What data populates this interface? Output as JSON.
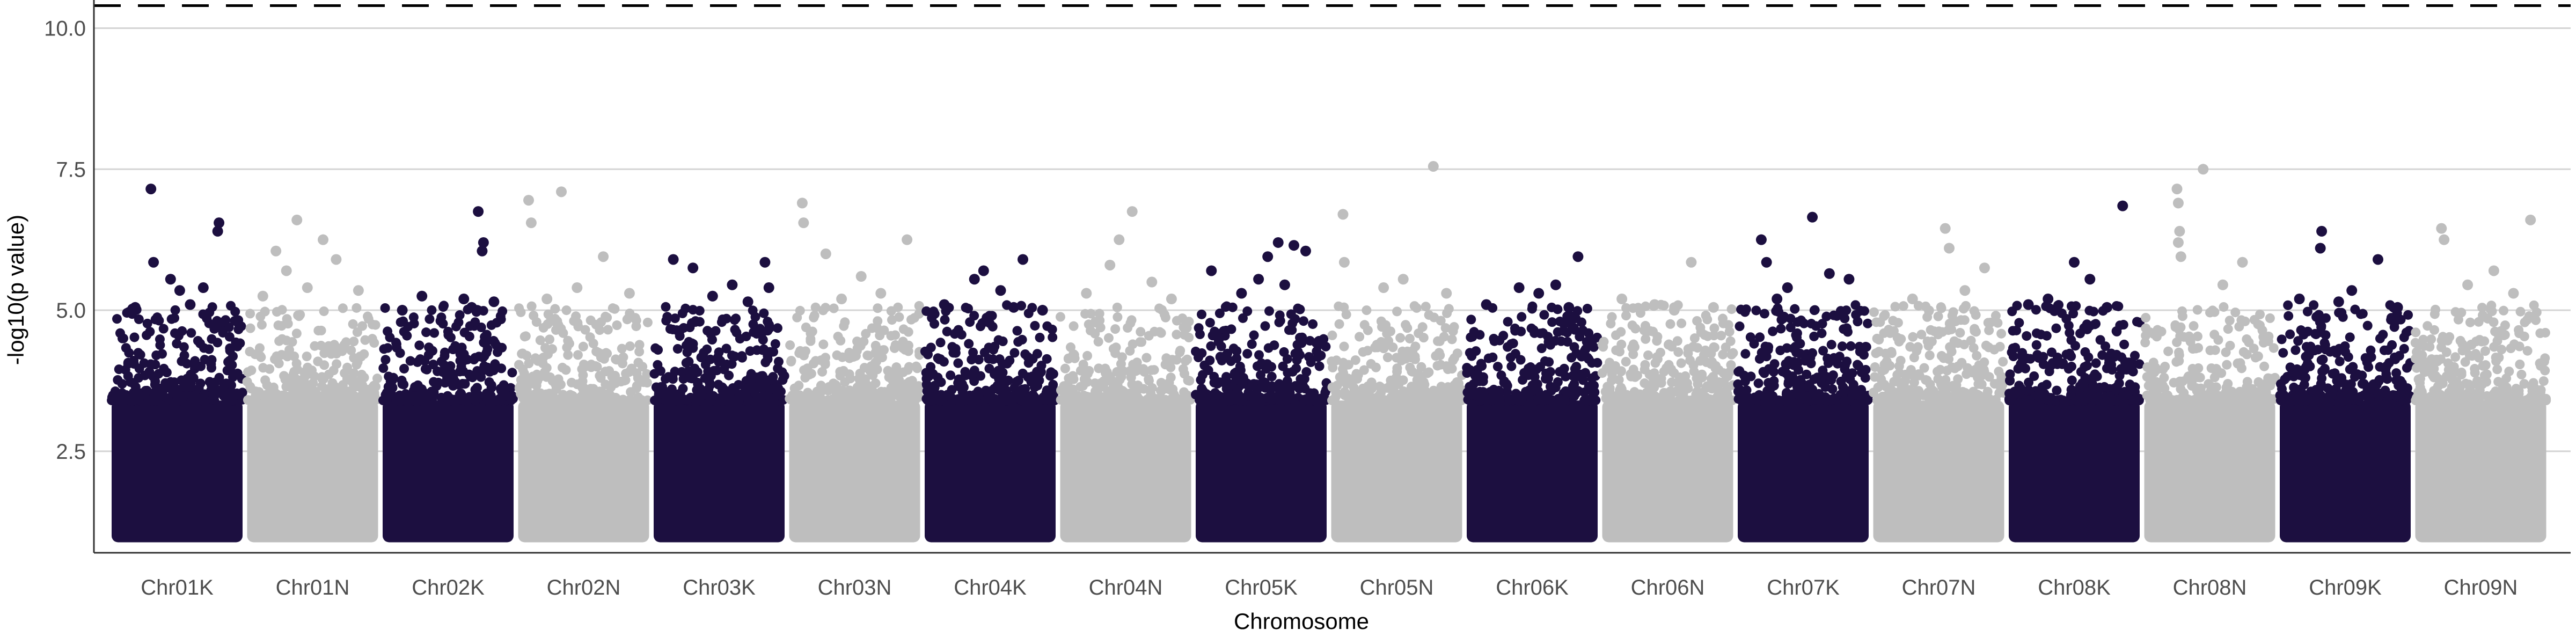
{
  "chart_data": {
    "type": "scatter",
    "title": "",
    "xlabel": "Chromosome",
    "ylabel": "-log10(p value)",
    "ylim": [
      0.7,
      10.5
    ],
    "yticks": [
      2.5,
      5.0,
      7.5,
      10.0
    ],
    "ytick_labels": [
      "2.5",
      "5.0",
      "7.5",
      "10.0"
    ],
    "grid": "horizontal major lines only",
    "threshold_line": {
      "value": 10.4,
      "style": "dashed",
      "color": "#000000"
    },
    "floor_value": 1.0,
    "colors": {
      "dark": "#1c0f40",
      "light": "#bebebe"
    },
    "categories": [
      "Chr01K",
      "Chr01N",
      "Chr02K",
      "Chr02N",
      "Chr03K",
      "Chr03N",
      "Chr04K",
      "Chr04N",
      "Chr05K",
      "Chr05N",
      "Chr06K",
      "Chr06N",
      "Chr07K",
      "Chr07N",
      "Chr08K",
      "Chr08N",
      "Chr09K",
      "Chr09N"
    ],
    "series": [
      {
        "category": "Chr01K",
        "color": "dark",
        "max": 7.15,
        "peaks": [
          [
            0.3,
            7.15
          ],
          [
            0.82,
            6.55
          ],
          [
            0.81,
            6.4
          ],
          [
            0.32,
            5.85
          ],
          [
            0.45,
            5.55
          ],
          [
            0.52,
            5.35
          ],
          [
            0.18,
            5.05
          ],
          [
            0.7,
            5.4
          ],
          [
            0.6,
            5.1
          ]
        ]
      },
      {
        "category": "Chr01N",
        "color": "light",
        "max": 6.6,
        "peaks": [
          [
            0.38,
            6.6
          ],
          [
            0.22,
            6.05
          ],
          [
            0.58,
            6.25
          ],
          [
            0.68,
            5.9
          ],
          [
            0.3,
            5.7
          ],
          [
            0.46,
            5.4
          ],
          [
            0.85,
            5.35
          ],
          [
            0.12,
            5.25
          ]
        ]
      },
      {
        "category": "Chr02K",
        "color": "dark",
        "max": 6.75,
        "peaks": [
          [
            0.73,
            6.75
          ],
          [
            0.77,
            6.2
          ],
          [
            0.76,
            6.05
          ],
          [
            0.62,
            5.2
          ],
          [
            0.68,
            5.05
          ],
          [
            0.3,
            5.25
          ],
          [
            0.85,
            5.15
          ],
          [
            0.15,
            5.0
          ]
        ]
      },
      {
        "category": "Chr02N",
        "color": "light",
        "max": 7.1,
        "peaks": [
          [
            0.33,
            7.1
          ],
          [
            0.08,
            6.95
          ],
          [
            0.1,
            6.55
          ],
          [
            0.65,
            5.95
          ],
          [
            0.45,
            5.4
          ],
          [
            0.85,
            5.3
          ],
          [
            0.22,
            5.2
          ]
        ]
      },
      {
        "category": "Chr03K",
        "color": "dark",
        "max": 5.9,
        "peaks": [
          [
            0.15,
            5.9
          ],
          [
            0.85,
            5.85
          ],
          [
            0.3,
            5.75
          ],
          [
            0.6,
            5.45
          ],
          [
            0.88,
            5.4
          ],
          [
            0.45,
            5.25
          ],
          [
            0.72,
            5.15
          ]
        ]
      },
      {
        "category": "Chr03N",
        "color": "light",
        "max": 6.9,
        "peaks": [
          [
            0.1,
            6.9
          ],
          [
            0.11,
            6.55
          ],
          [
            0.28,
            6.0
          ],
          [
            0.9,
            6.25
          ],
          [
            0.55,
            5.6
          ],
          [
            0.7,
            5.3
          ],
          [
            0.4,
            5.2
          ]
        ]
      },
      {
        "category": "Chr04K",
        "color": "dark",
        "max": 5.9,
        "peaks": [
          [
            0.75,
            5.9
          ],
          [
            0.45,
            5.7
          ],
          [
            0.38,
            5.55
          ],
          [
            0.58,
            5.35
          ],
          [
            0.15,
            5.1
          ],
          [
            0.68,
            5.05
          ],
          [
            0.9,
            5.0
          ]
        ]
      },
      {
        "category": "Chr04N",
        "color": "light",
        "max": 6.75,
        "peaks": [
          [
            0.55,
            6.75
          ],
          [
            0.45,
            6.25
          ],
          [
            0.38,
            5.8
          ],
          [
            0.7,
            5.5
          ],
          [
            0.2,
            5.3
          ],
          [
            0.85,
            5.2
          ]
        ]
      },
      {
        "category": "Chr05K",
        "color": "dark",
        "max": 6.2,
        "peaks": [
          [
            0.63,
            6.2
          ],
          [
            0.75,
            6.15
          ],
          [
            0.84,
            6.05
          ],
          [
            0.55,
            5.95
          ],
          [
            0.12,
            5.7
          ],
          [
            0.48,
            5.55
          ],
          [
            0.35,
            5.3
          ],
          [
            0.68,
            5.45
          ]
        ]
      },
      {
        "category": "Chr05N",
        "color": "light",
        "max": 7.55,
        "peaks": [
          [
            0.78,
            7.55
          ],
          [
            0.09,
            6.7
          ],
          [
            0.1,
            5.85
          ],
          [
            0.55,
            5.55
          ],
          [
            0.4,
            5.4
          ],
          [
            0.88,
            5.3
          ]
        ]
      },
      {
        "category": "Chr06K",
        "color": "dark",
        "max": 5.95,
        "peaks": [
          [
            0.85,
            5.95
          ],
          [
            0.68,
            5.45
          ],
          [
            0.4,
            5.4
          ],
          [
            0.55,
            5.3
          ],
          [
            0.15,
            5.1
          ],
          [
            0.78,
            5.05
          ]
        ]
      },
      {
        "category": "Chr06N",
        "color": "light",
        "max": 5.85,
        "peaks": [
          [
            0.68,
            5.85
          ],
          [
            0.15,
            5.2
          ],
          [
            0.4,
            5.1
          ],
          [
            0.85,
            5.05
          ],
          [
            0.55,
            5.0
          ]
        ]
      },
      {
        "category": "Chr07K",
        "color": "dark",
        "max": 6.65,
        "peaks": [
          [
            0.57,
            6.65
          ],
          [
            0.18,
            6.25
          ],
          [
            0.22,
            5.85
          ],
          [
            0.85,
            5.55
          ],
          [
            0.7,
            5.65
          ],
          [
            0.38,
            5.4
          ],
          [
            0.3,
            5.2
          ]
        ]
      },
      {
        "category": "Chr07N",
        "color": "light",
        "max": 6.45,
        "peaks": [
          [
            0.55,
            6.45
          ],
          [
            0.58,
            6.1
          ],
          [
            0.85,
            5.75
          ],
          [
            0.3,
            5.2
          ],
          [
            0.7,
            5.35
          ]
        ]
      },
      {
        "category": "Chr08K",
        "color": "dark",
        "max": 6.85,
        "peaks": [
          [
            0.87,
            6.85
          ],
          [
            0.5,
            5.85
          ],
          [
            0.62,
            5.55
          ],
          [
            0.3,
            5.2
          ],
          [
            0.15,
            5.1
          ],
          [
            0.75,
            5.05
          ]
        ]
      },
      {
        "category": "Chr08N",
        "color": "light",
        "max": 7.5,
        "peaks": [
          [
            0.45,
            7.5
          ],
          [
            0.25,
            7.15
          ],
          [
            0.26,
            6.9
          ],
          [
            0.27,
            6.4
          ],
          [
            0.26,
            6.2
          ],
          [
            0.28,
            5.95
          ],
          [
            0.75,
            5.85
          ],
          [
            0.6,
            5.45
          ]
        ]
      },
      {
        "category": "Chr09K",
        "color": "dark",
        "max": 6.4,
        "peaks": [
          [
            0.32,
            6.4
          ],
          [
            0.31,
            6.1
          ],
          [
            0.75,
            5.9
          ],
          [
            0.55,
            5.35
          ],
          [
            0.9,
            5.05
          ],
          [
            0.15,
            5.2
          ],
          [
            0.45,
            5.15
          ]
        ]
      },
      {
        "category": "Chr09N",
        "color": "light",
        "max": 6.6,
        "peaks": [
          [
            0.88,
            6.6
          ],
          [
            0.2,
            6.45
          ],
          [
            0.22,
            6.25
          ],
          [
            0.6,
            5.7
          ],
          [
            0.4,
            5.45
          ],
          [
            0.75,
            5.3
          ]
        ]
      }
    ]
  }
}
